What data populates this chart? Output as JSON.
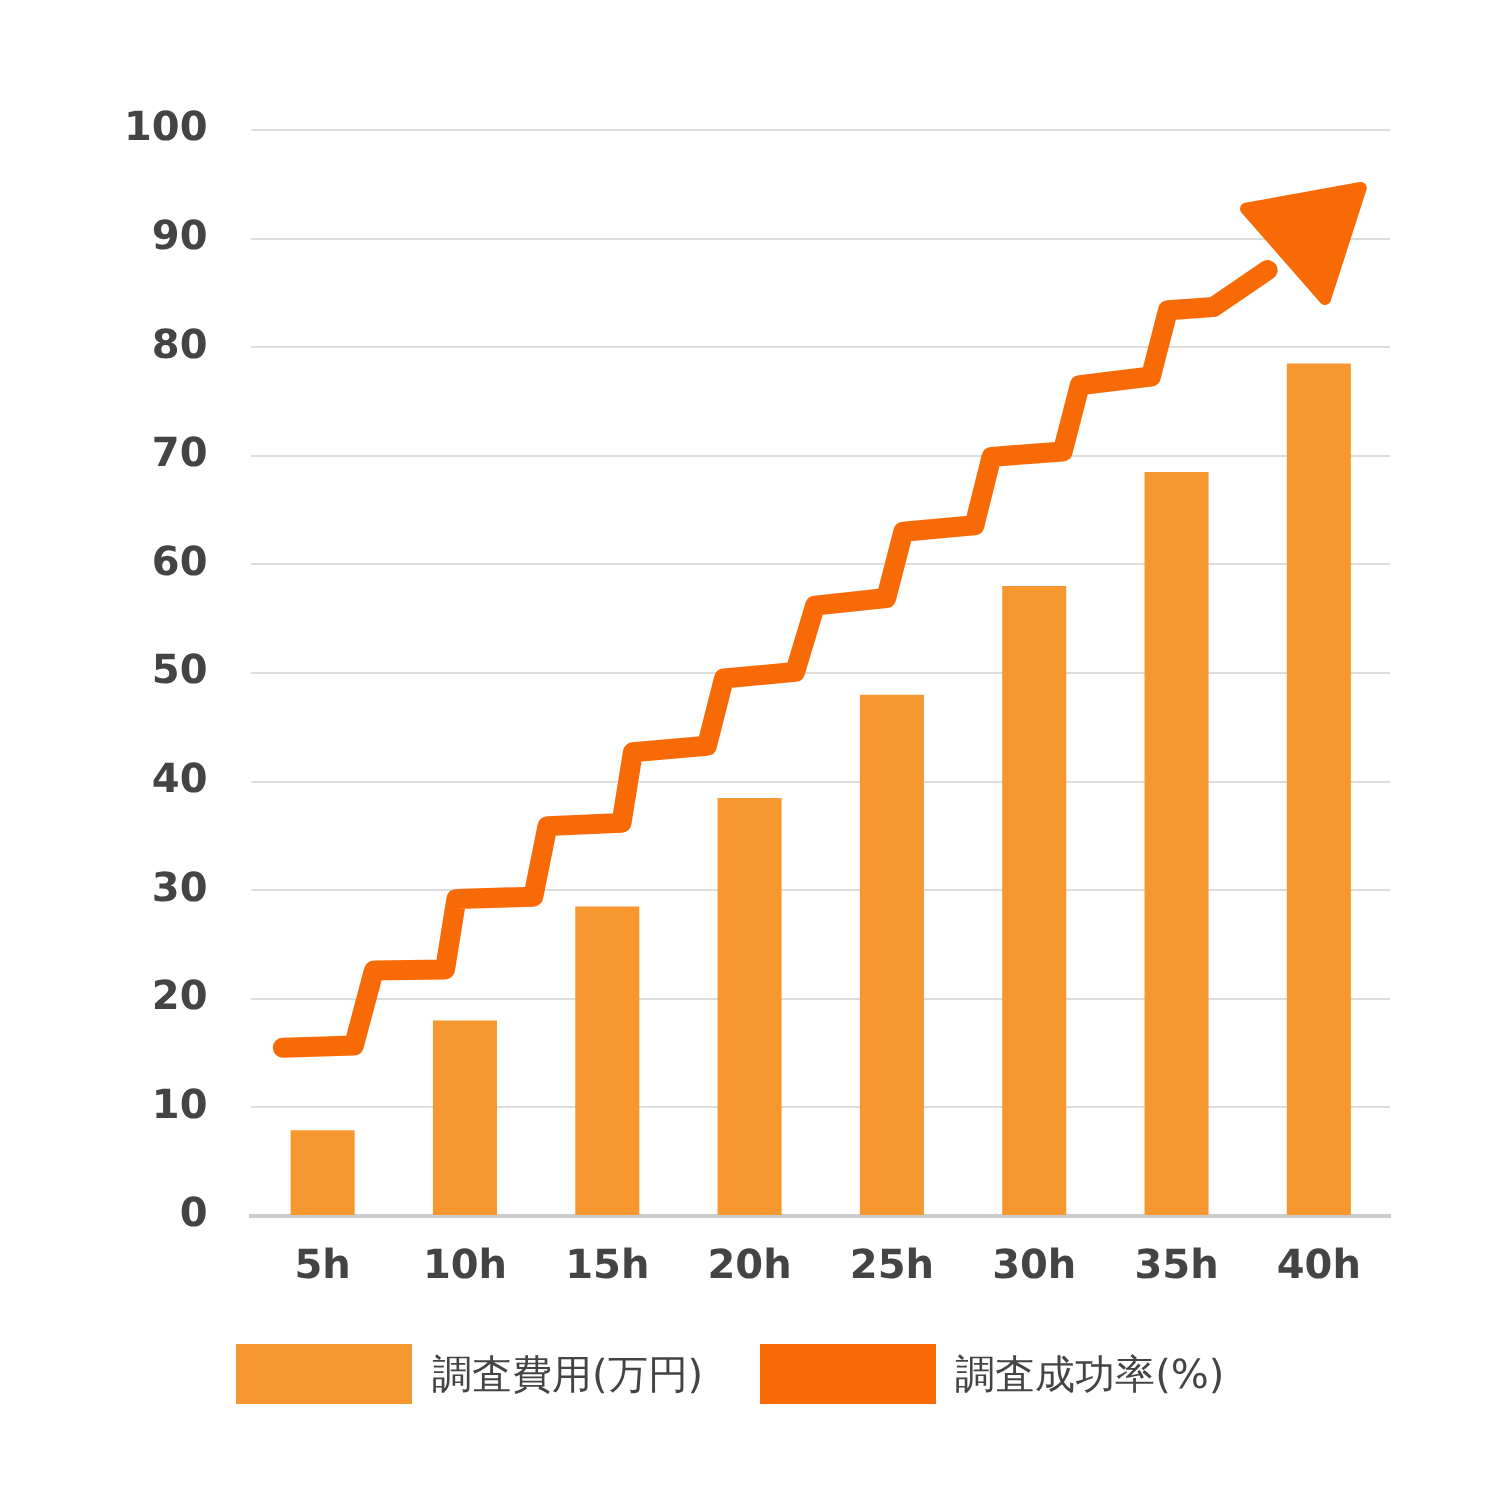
{
  "chart_data": {
    "type": "bar",
    "x": [
      5,
      10,
      15,
      20,
      25,
      30,
      35,
      40
    ],
    "xlim": [
      2.5,
      42.5
    ],
    "xticks": [
      {
        "value": 5,
        "label": "5h"
      },
      {
        "value": 10,
        "label": "10h"
      },
      {
        "value": 15,
        "label": "15h"
      },
      {
        "value": 20,
        "label": "20h"
      },
      {
        "value": 25,
        "label": "25h"
      },
      {
        "value": 30,
        "label": "30h"
      },
      {
        "value": 35,
        "label": "35h"
      },
      {
        "value": 40,
        "label": "40h"
      }
    ],
    "ylim": [
      0,
      100
    ],
    "yticks": [
      0,
      10,
      20,
      30,
      40,
      50,
      60,
      70,
      80,
      90,
      100
    ],
    "grid": "y",
    "legend": "bottom",
    "series": [
      {
        "name": "調査費用(万円)",
        "color": "#f7972f",
        "values": [
          7.9,
          18,
          28.5,
          38.5,
          48,
          58,
          68.5,
          78.5
        ]
      },
      {
        "name": "調査成功率(%)",
        "type": "line",
        "color": "#f76a05",
        "marker": "none",
        "x": [
          3.6,
          6.1,
          6.8,
          9.3,
          9.7,
          12.4,
          12.9,
          15.5,
          15.9,
          18.5,
          19.1,
          21.6,
          22.3,
          24.8,
          25.4,
          27.9,
          28.5,
          31,
          31.6,
          34.1,
          34.7,
          36.3,
          38.2
        ],
        "values": [
          15.5,
          15.7,
          22.6,
          22.7,
          29.2,
          29.4,
          35.9,
          36.2,
          42.7,
          43.3,
          49.5,
          50.1,
          56.2,
          56.9,
          63,
          63.6,
          69.9,
          70.4,
          76.5,
          77.3,
          83.4,
          83.7,
          87.1
        ]
      }
    ]
  }
}
